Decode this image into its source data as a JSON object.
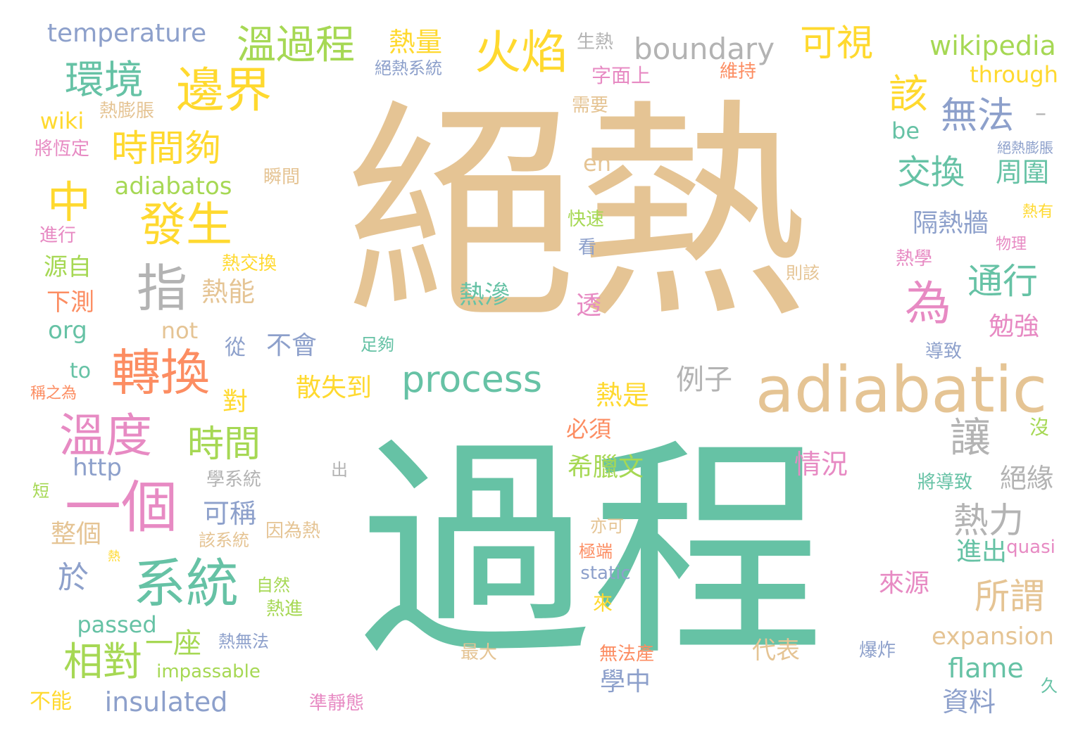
{
  "palette": {
    "green": "#66c2a5",
    "tan": "#e5c494",
    "pink": "#e78ac3",
    "orange": "#fc8d62",
    "yellow": "#ffd92f",
    "lime": "#a6d854",
    "blue": "#8da0cb",
    "gray": "#b3b3b3"
  },
  "words": {
    "juere": "絕熱",
    "guocheng": "過程",
    "adiabatic": "adiabatic",
    "yige": "一個",
    "xitong": "系統",
    "zhuanhuan": "轉換",
    "wendu": "溫度",
    "bianjie": "邊界",
    "huoyan": "火焰",
    "wenguocheng": "溫過程",
    "huanjing": "環境",
    "shijiangou": "時間夠",
    "fasheng": "發生",
    "zhi": "指",
    "zhong": "中",
    "wei": "為",
    "gai": "該",
    "kelshi": "可視",
    "wufa": "無法",
    "jiaohuan": "交換",
    "tongxing": "通行",
    "process": "process",
    "shijian": "時間",
    "xiangdui": "相對",
    "rang": "讓",
    "suowei": "所謂",
    "relli": "熱力",
    "boundary": "boundary",
    "temperature": "temperature",
    "wikipedia": "wikipedia",
    "relliang": "熱量",
    "shengre": "生熱",
    "juerexitong": "絕熱系統",
    "zimianshang": "字面上",
    "weichi": "維持",
    "through": "through",
    "dash": "–",
    "be": "be",
    "repengzhang": "熱膨脹",
    "xuyao": "需要",
    "wiki": "wiki",
    "jianghengding": "將恆定",
    "jueerepengzhang": "絕熱膨脹",
    "en": "en",
    "zhouwei": "周圍",
    "adiabatos": "adiabatos",
    "shunjian": "瞬間",
    "kuaisu": "快速",
    "reyou": "熱有",
    "geereqiang": "隔熱牆",
    "jinxing": "進行",
    "wuli": "物理",
    "kan": "看",
    "rexue": "熱學",
    "rejiaohuan": "熱交換",
    "yuanzi": "源自",
    "zegai": "則該",
    "reneng": "熱能",
    "reshen": "熱滲",
    "tou": "透",
    "xiace": "下測",
    "mianqiang": "勉強",
    "org": "org",
    "not": "not",
    "cong": "從",
    "buhui": "不會",
    "zugou": "足夠",
    "daozhi": "導致",
    "to": "to",
    "chengzhiwei": "稱之為",
    "sanshidao": "散失到",
    "lizi": "例子",
    "dui": "對",
    "reshi": "熱是",
    "bixu": "必須",
    "mei": "沒",
    "qingkuang": "情況",
    "http": "http",
    "xilawen": "希臘文",
    "chu": "出",
    "xuexitong": "學系統",
    "jiangdaozhi": "將導致",
    "jueyuan": "絕緣",
    "duan": "短",
    "kecheng": "可稱",
    "zhengge": "整個",
    "gaixitong": "該系統",
    "yinweire": "因為熱",
    "yike": "亦可",
    "jinchu": "進出",
    "quasi": "quasi",
    "re": "熱",
    "jiduan": "極端",
    "yu": "於",
    "static": "static",
    "laiyuan": "來源",
    "ziran": "自然",
    "rejin": "熱進",
    "lai": "來",
    "passed": "passed",
    "yizuo": "一座",
    "rewufa": "熱無法",
    "expansion": "expansion",
    "daibiao": "代表",
    "zuida": "最大",
    "wufachan": "無法產",
    "baozha": "爆炸",
    "flame": "flame",
    "impassable": "impassable",
    "xuezhong": "學中",
    "jiu": "久",
    "buneng": "不能",
    "insulated": "insulated",
    "zhunjingtai": "準靜態",
    "ziliao": "資料"
  }
}
